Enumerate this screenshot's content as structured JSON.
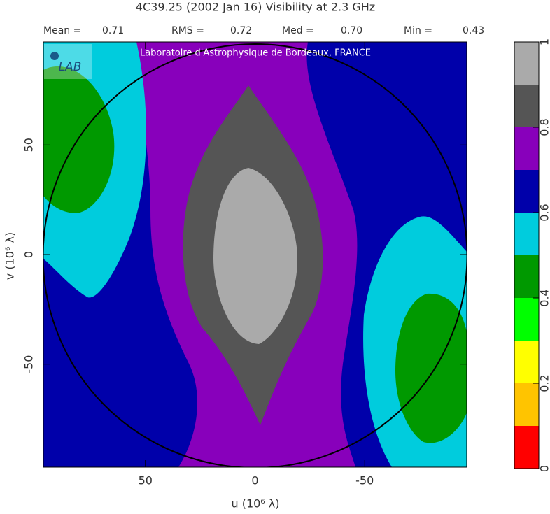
{
  "chart_data": {
    "type": "contour",
    "title": "4C39.25  (2002 Jan 16)   Visibility at  2.3 GHz",
    "stats": {
      "labels": [
        "Mean =",
        "RMS =",
        "Med =",
        "Min ="
      ],
      "values": [
        0.71,
        0.72,
        0.7,
        0.43
      ],
      "value_labels": [
        "0.71",
        "0.72",
        "0.70",
        "0.43"
      ]
    },
    "annotation": "Laboratoire d'Astrophysique de Bordeaux, FRANCE",
    "logo": "LAB",
    "x_label": "u  (10⁶ λ)",
    "y_label": "v  (10⁶ λ)",
    "xlim": [
      96.5,
      -96.5
    ],
    "ylim": [
      -97,
      97
    ],
    "xticks": [
      50,
      0,
      -50
    ],
    "yticks": [
      -50,
      0,
      50
    ],
    "colorbar": {
      "levels": [
        0,
        0.1,
        0.2,
        0.3,
        0.4,
        0.5,
        0.6,
        0.7,
        0.8,
        0.9,
        1
      ],
      "colors": [
        "#ff0000",
        "#ffc400",
        "#ffff00",
        "#00ff00",
        "#009900",
        "#00ccdd",
        "#0000aa",
        "#8800bb",
        "#555555",
        "#aaaaaa"
      ],
      "ticks": [
        0,
        0.2,
        0.4,
        0.6,
        0.8,
        1
      ]
    }
  }
}
